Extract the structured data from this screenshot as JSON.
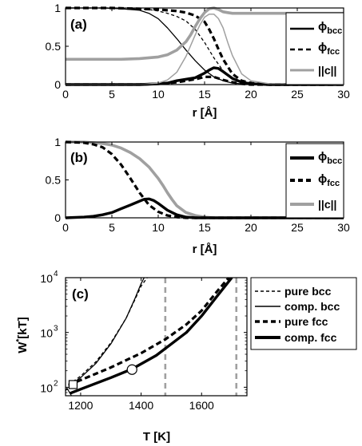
{
  "chart_data": [
    {
      "type": "line",
      "panel_label": "(a)",
      "xlabel": "r [Å]",
      "ylabel": "",
      "xlim": [
        0,
        30
      ],
      "ylim": [
        0,
        1
      ],
      "xticks": [
        0,
        5,
        10,
        15,
        20,
        25,
        30
      ],
      "xtick_labels": [
        "0",
        "5",
        "10",
        "15",
        "20",
        "25",
        "30"
      ],
      "yticks": [
        0,
        0.5,
        1
      ],
      "ytick_labels": [
        "0",
        "0.5",
        "1"
      ],
      "grid": false,
      "legend_position": "top-right",
      "legend": [
        {
          "main": "ϕ",
          "sub": "bcc",
          "style": "solid-black"
        },
        {
          "main": "ϕ",
          "sub": "fcc",
          "style": "dashed-black"
        },
        {
          "main": "||c||",
          "sub": "",
          "style": "solid-gray"
        }
      ],
      "series": [
        {
          "style": "thick-solid-black",
          "x": [
            0,
            8,
            10,
            11,
            12,
            13,
            14,
            15,
            15.5,
            16,
            16.5,
            17,
            18,
            19,
            20,
            22,
            30
          ],
          "y": [
            0,
            0,
            0.01,
            0.02,
            0.05,
            0.07,
            0.09,
            0.15,
            0.19,
            0.22,
            0.21,
            0.17,
            0.08,
            0.03,
            0.01,
            0,
            0
          ]
        },
        {
          "style": "thick-dashed-black",
          "x": [
            0,
            8,
            10,
            11,
            12,
            13,
            14,
            15,
            16,
            17,
            18,
            19,
            20,
            22,
            30
          ],
          "y": [
            0,
            0,
            0.01,
            0.02,
            0.03,
            0.05,
            0.07,
            0.1,
            0.1,
            0.06,
            0.03,
            0.01,
            0,
            0,
            0
          ]
        },
        {
          "style": "thin-solid-black",
          "x": [
            0,
            4,
            6,
            8,
            9,
            10,
            11,
            12,
            13,
            14,
            15,
            16,
            17,
            18,
            19,
            20,
            22,
            30
          ],
          "y": [
            1,
            1,
            0.99,
            0.97,
            0.93,
            0.86,
            0.74,
            0.6,
            0.45,
            0.31,
            0.19,
            0.1,
            0.05,
            0.02,
            0.01,
            0,
            0,
            0
          ]
        },
        {
          "style": "thin-dashed-black",
          "x": [
            0,
            5,
            7,
            9,
            10,
            11,
            12,
            13,
            14,
            15,
            16,
            17,
            18,
            19,
            20,
            22,
            30
          ],
          "y": [
            1,
            1,
            0.99,
            0.98,
            0.96,
            0.93,
            0.89,
            0.83,
            0.72,
            0.55,
            0.35,
            0.18,
            0.07,
            0.03,
            0.01,
            0,
            0
          ]
        },
        {
          "style": "thick-dashed-black",
          "x": [
            0,
            5,
            8,
            10,
            11,
            12,
            13,
            14,
            15,
            15.5,
            16,
            16.5,
            17,
            18,
            19,
            20,
            22,
            30
          ],
          "y": [
            1,
            1,
            0.99,
            0.98,
            0.97,
            0.96,
            0.94,
            0.9,
            0.82,
            0.72,
            0.6,
            0.46,
            0.33,
            0.14,
            0.05,
            0.02,
            0,
            0
          ]
        },
        {
          "style": "thin-solid-gray",
          "x": [
            0,
            8,
            10,
            11,
            12,
            13,
            14,
            14.5,
            15,
            15.5,
            16,
            16.5,
            17,
            17.5,
            18,
            19,
            20,
            22,
            30
          ],
          "y": [
            0,
            0,
            0.02,
            0.06,
            0.16,
            0.37,
            0.65,
            0.78,
            0.88,
            0.92,
            0.92,
            0.86,
            0.74,
            0.55,
            0.38,
            0.14,
            0.05,
            0.01,
            0
          ]
        },
        {
          "style": "thick-solid-gray",
          "x": [
            0,
            6,
            8,
            10,
            11,
            12,
            13,
            13.5,
            14,
            14.5,
            15,
            15.5,
            16,
            16.5,
            17,
            17.5,
            18,
            19,
            20,
            22,
            30
          ],
          "y": [
            0.33,
            0.33,
            0.34,
            0.36,
            0.39,
            0.45,
            0.56,
            0.65,
            0.76,
            0.86,
            0.94,
            0.99,
            1,
            0.98,
            0.95,
            0.94,
            0.93,
            0.93,
            0.93,
            0.93,
            0.93
          ]
        }
      ]
    },
    {
      "type": "line",
      "panel_label": "(b)",
      "xlabel": "r [Å]",
      "ylabel": "",
      "xlim": [
        0,
        30
      ],
      "ylim": [
        0,
        1
      ],
      "xticks": [
        0,
        5,
        10,
        15,
        20,
        25,
        30
      ],
      "xtick_labels": [
        "0",
        "5",
        "10",
        "15",
        "20",
        "25",
        "30"
      ],
      "yticks": [
        0,
        0.5,
        1
      ],
      "ytick_labels": [
        "0",
        "0.5",
        "1"
      ],
      "grid": false,
      "legend_position": "top-right",
      "legend": [
        {
          "main": "ϕ",
          "sub": "bcc",
          "style": "thick-solid-black"
        },
        {
          "main": "ϕ",
          "sub": "fcc",
          "style": "thick-dashed-black"
        },
        {
          "main": "||c||",
          "sub": "",
          "style": "thick-solid-gray"
        }
      ],
      "series": [
        {
          "style": "thick-solid-gray",
          "x": [
            0,
            2,
            4,
            5,
            6,
            7,
            8,
            9,
            10,
            10.5,
            11,
            11.5,
            12,
            13,
            14,
            15,
            16,
            18,
            30
          ],
          "y": [
            1,
            1,
            0.98,
            0.96,
            0.92,
            0.86,
            0.78,
            0.67,
            0.52,
            0.43,
            0.33,
            0.24,
            0.16,
            0.07,
            0.03,
            0.01,
            0,
            0,
            0
          ]
        },
        {
          "style": "thick-dashed-black",
          "x": [
            0,
            2,
            3,
            4,
            5,
            6,
            7,
            8,
            9,
            10,
            11,
            12,
            13,
            14,
            15,
            17,
            30
          ],
          "y": [
            1,
            0.99,
            0.97,
            0.93,
            0.84,
            0.7,
            0.52,
            0.33,
            0.17,
            0.08,
            0.03,
            0.01,
            0,
            0,
            0,
            0,
            0
          ]
        },
        {
          "style": "thick-solid-black",
          "x": [
            0,
            2,
            3,
            4,
            5,
            6,
            7,
            8,
            8.5,
            9,
            9.5,
            10,
            11,
            12,
            13,
            14,
            16,
            30
          ],
          "y": [
            0,
            0.01,
            0.02,
            0.04,
            0.07,
            0.12,
            0.17,
            0.22,
            0.245,
            0.25,
            0.23,
            0.19,
            0.1,
            0.04,
            0.01,
            0,
            0,
            0
          ]
        }
      ]
    },
    {
      "type": "line",
      "panel_label": "(c)",
      "xlabel": "T [K]",
      "ylabel": "W* [kT]",
      "ylabel_main": "W",
      "ylabel_sup": "*",
      "ylabel_unit": "[kT]",
      "xlim": [
        1150,
        1750
      ],
      "ylim": [
        70,
        10000
      ],
      "y_scale": "log",
      "xticks": [
        1200,
        1400,
        1600
      ],
      "xtick_labels": [
        "1200",
        "1400",
        "1600"
      ],
      "yticks": [
        100,
        1000,
        10000
      ],
      "ytick_labels": [
        {
          "base": "10",
          "exp": "2"
        },
        {
          "base": "10",
          "exp": "3"
        },
        {
          "base": "10",
          "exp": "4"
        }
      ],
      "grid": false,
      "legend_position": "outside-right",
      "legend": [
        {
          "label": "pure bcc",
          "style": "thin-dashed-black"
        },
        {
          "label": "comp. bcc",
          "style": "thin-solid-black"
        },
        {
          "label": "pure fcc",
          "style": "thick-dashed-black"
        },
        {
          "label": "comp. fcc",
          "style": "thick-solid-black"
        }
      ],
      "series": [
        {
          "name": "pure bcc",
          "style": "thin-dashed-black",
          "x": [
            1160,
            1200,
            1250,
            1300,
            1350,
            1380,
            1400,
            1420
          ],
          "y": [
            110,
            160,
            290,
            650,
            1800,
            4000,
            7000,
            10000
          ]
        },
        {
          "name": "comp. bcc",
          "style": "thin-solid-black",
          "x": [
            1160,
            1200,
            1250,
            1300,
            1350,
            1380,
            1400,
            1410
          ],
          "y": [
            105,
            150,
            270,
            620,
            1800,
            4200,
            7800,
            10000
          ]
        },
        {
          "name": "pure fcc",
          "style": "thick-dashed-black",
          "x": [
            1160,
            1200,
            1300,
            1400,
            1480,
            1550,
            1600,
            1650,
            1690
          ],
          "y": [
            110,
            135,
            230,
            420,
            750,
            1400,
            2500,
            5500,
            10000
          ]
        },
        {
          "name": "comp. fcc",
          "style": "thick-solid-black",
          "x": [
            1150,
            1200,
            1300,
            1370,
            1450,
            1550,
            1600,
            1650,
            1700
          ],
          "y": [
            72,
            92,
            150,
            215,
            380,
            1000,
            2000,
            4500,
            10000
          ]
        }
      ],
      "markers": [
        {
          "shape": "square",
          "x": 1175,
          "y": 112
        },
        {
          "shape": "circle",
          "x": 1370,
          "y": 210
        },
        {
          "shape": "triangle",
          "x": 1155,
          "y": 76
        }
      ],
      "vlines": [
        {
          "x": 1480,
          "style": "dashed-gray"
        },
        {
          "x": 1715,
          "style": "dashed-gray"
        }
      ]
    }
  ]
}
